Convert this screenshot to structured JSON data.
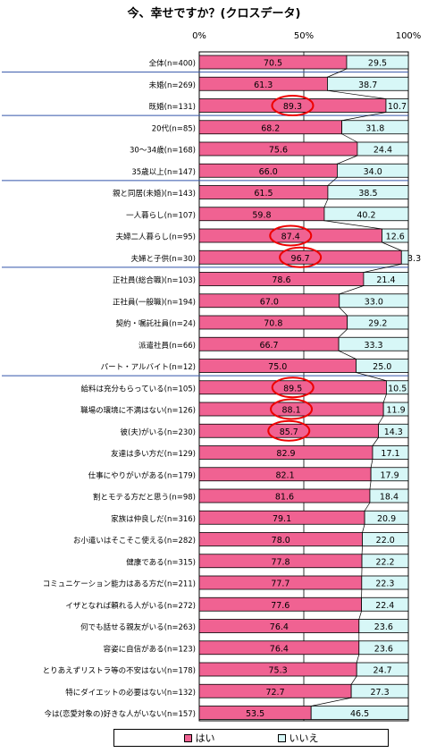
{
  "chart_data": {
    "type": "bar",
    "orientation": "horizontal",
    "stacked": "percent",
    "title": "今、幸せですか？(クロスデータ)",
    "xlim": [
      0,
      100
    ],
    "xticks": [
      "0%",
      "50%",
      "100%"
    ],
    "legend_position": "bottom",
    "colors": {
      "yes": "#f06292",
      "no": "#d7f7f7",
      "highlight": "#ee0000",
      "rule": "#3355aa"
    },
    "series": [
      {
        "name": "はい",
        "values": [
          70.5,
          61.3,
          89.3,
          68.2,
          75.6,
          66.0,
          61.5,
          59.8,
          87.4,
          96.7,
          78.6,
          67.0,
          70.8,
          66.7,
          75.0,
          89.5,
          88.1,
          85.7,
          82.9,
          82.1,
          81.6,
          79.1,
          78.0,
          77.8,
          77.7,
          77.6,
          76.4,
          76.4,
          75.3,
          72.7,
          53.5
        ]
      },
      {
        "name": "いいえ",
        "values": [
          29.5,
          38.7,
          10.7,
          31.8,
          24.4,
          34.0,
          38.5,
          40.2,
          12.6,
          3.3,
          21.4,
          33.0,
          29.2,
          33.3,
          25.0,
          10.5,
          11.9,
          14.3,
          17.1,
          17.9,
          18.4,
          20.9,
          22.0,
          22.2,
          22.3,
          22.4,
          23.6,
          23.6,
          24.7,
          27.3,
          46.5
        ]
      }
    ],
    "categories": [
      "全体(n=400)",
      "未婚(n=269)",
      "既婚(n=131)",
      "20代(n=85)",
      "30～34歳(n=168)",
      "35歳以上(n=147)",
      "親と同居(未婚)(n=143)",
      "一人暮らし(n=107)",
      "夫婦二人暮らし(n=95)",
      "夫婦と子供(n=30)",
      "正社員(総合職)(n=103)",
      "正社員(一般職)(n=194)",
      "契約・嘱託社員(n=24)",
      "派遣社員(n=66)",
      "パート・アルバイト(n=12)",
      "給料は充分もらっている(n=105)",
      "職場の環境に不満はない(n=126)",
      "彼(夫)がいる(n=230)",
      "友達は多い方だ(n=129)",
      "仕事にやりがいがある(n=179)",
      "割とモテる方だと思う(n=98)",
      "家族は仲良しだ(n=316)",
      "お小遣いはそこそこ使える(n=282)",
      "健康である(n=315)",
      "コミュニケーション能力はある方だ(n=211)",
      "イザとなれば頼れる人がいる(n=272)",
      "何でも話せる親友がいる(n=263)",
      "容姿に自信がある(n=123)",
      "とりあえずリストラ等の不安はない(n=178)",
      "特にダイエットの必要はない(n=132)",
      "今は(恋愛対象の)好きな人がいない(n=157)"
    ],
    "highlighted_categories": [
      2,
      8,
      9,
      15,
      16,
      17
    ],
    "group_separators_after": [
      0,
      2,
      5,
      9,
      14
    ]
  }
}
